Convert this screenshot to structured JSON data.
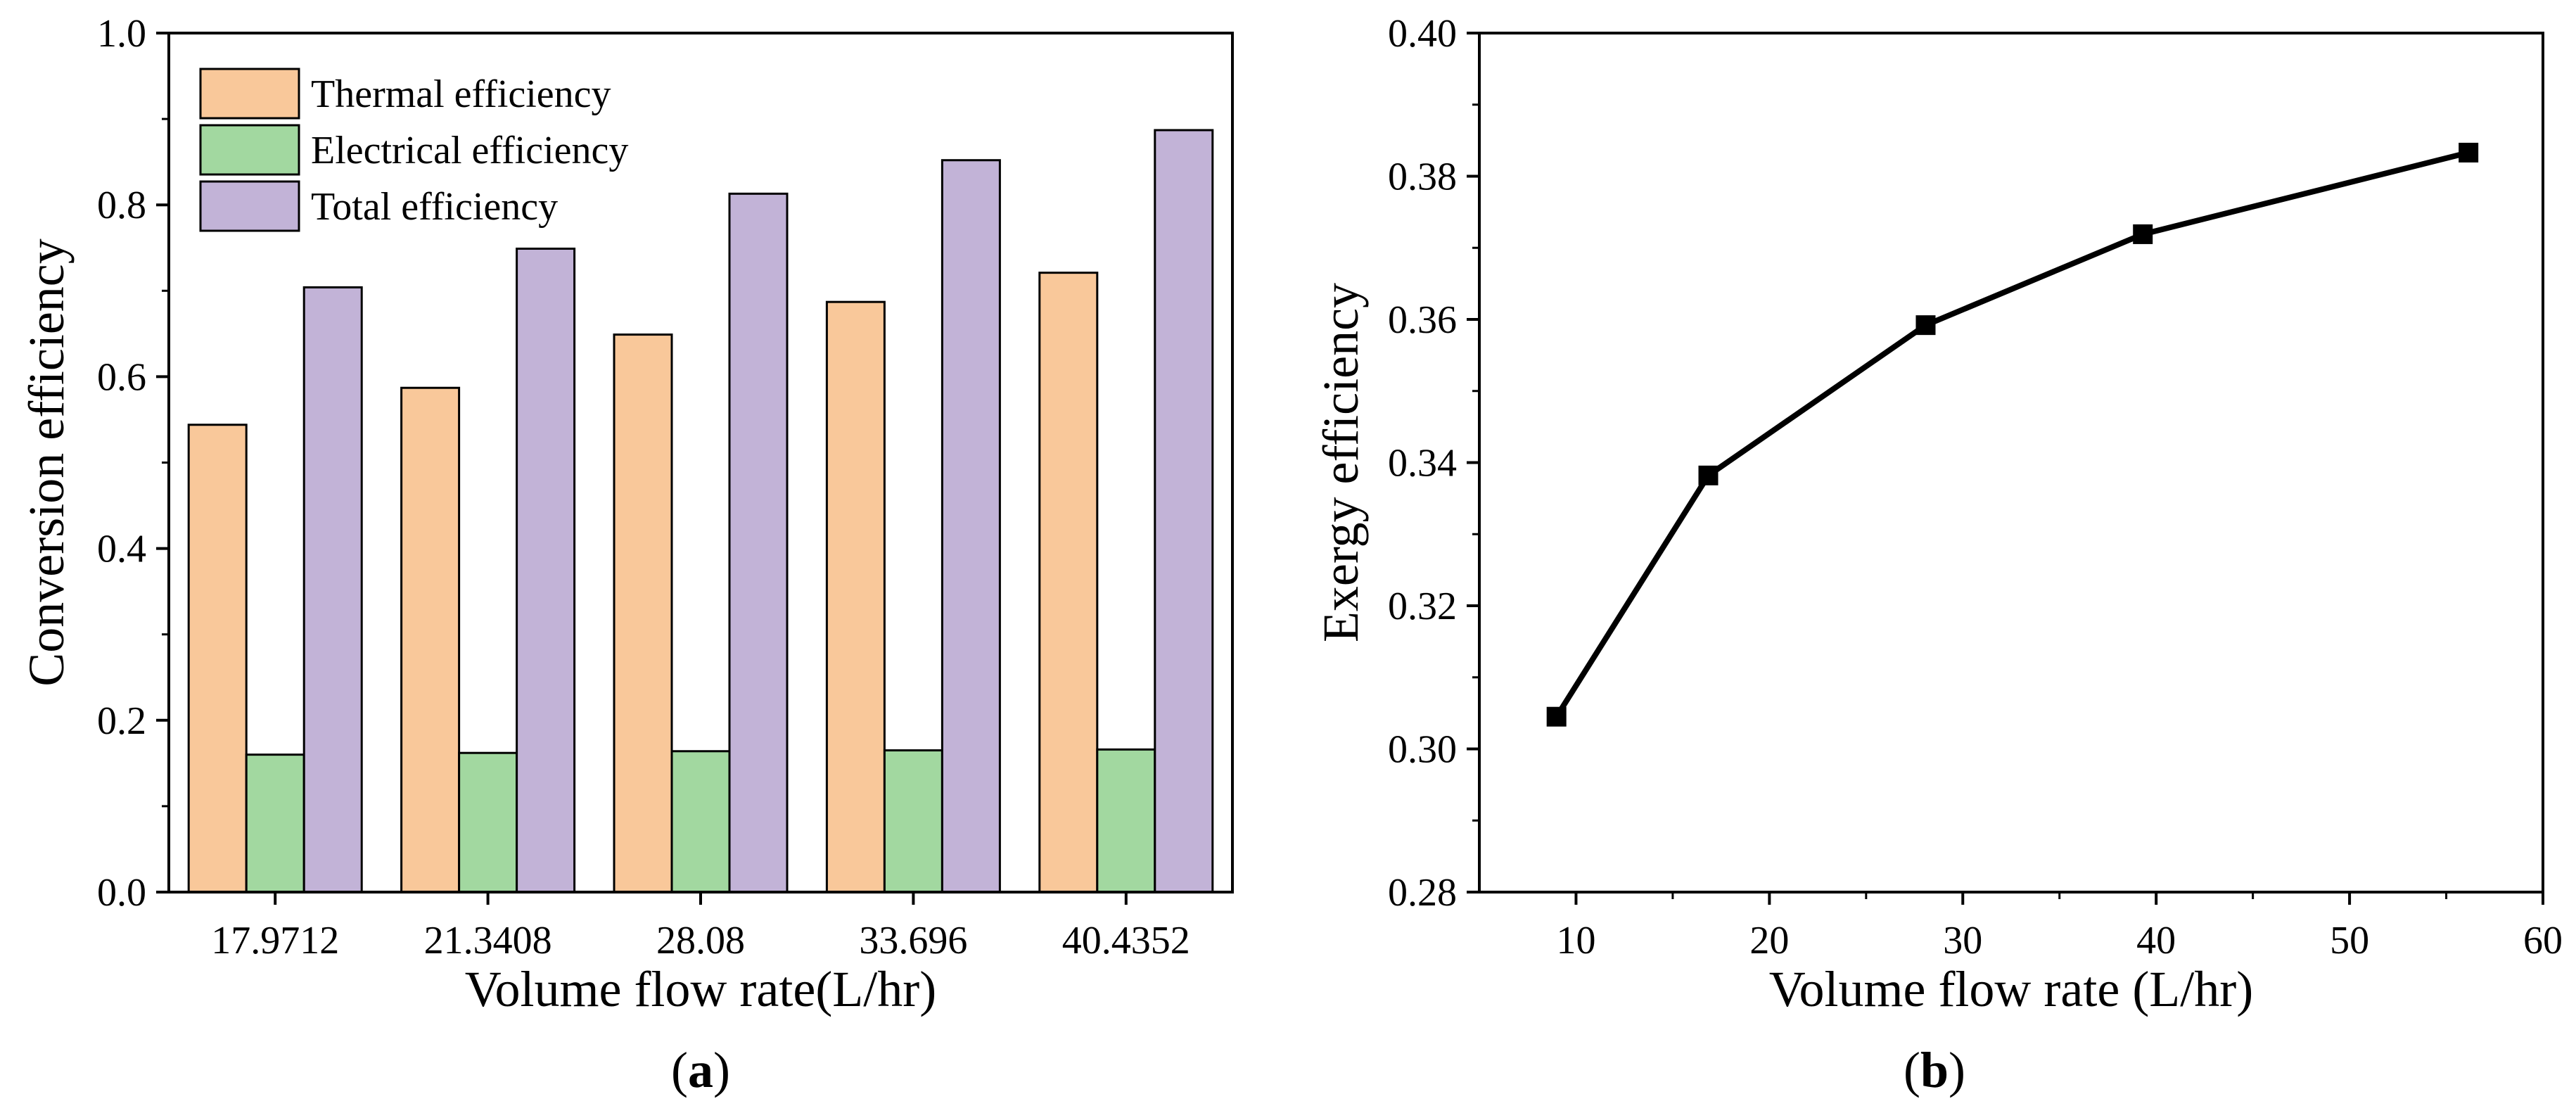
{
  "chart_data": [
    {
      "type": "bar",
      "panel_label": "a",
      "xlabel": "Volume flow rate(L/hr)",
      "ylabel": "Conversion efficiency",
      "ylim": [
        0.0,
        1.0
      ],
      "y_ticks": [
        "0.0",
        "0.2",
        "0.4",
        "0.6",
        "0.8",
        "1.0"
      ],
      "categories": [
        "17.9712",
        "21.3408",
        "28.08",
        "33.696",
        "40.4352"
      ],
      "legend_position": "top-left",
      "series": [
        {
          "name": "Thermal efficiency",
          "color": "#F9C89A",
          "values": [
            0.544,
            0.587,
            0.649,
            0.687,
            0.721
          ]
        },
        {
          "name": "Electrical efficiency",
          "color": "#A2D8A0",
          "values": [
            0.16,
            0.162,
            0.164,
            0.165,
            0.166
          ]
        },
        {
          "name": "Total efficiency",
          "color": "#C2B3D7",
          "values": [
            0.704,
            0.749,
            0.813,
            0.852,
            0.887
          ]
        }
      ]
    },
    {
      "type": "line",
      "panel_label": "b",
      "xlabel": "Volume flow rate (L/hr)",
      "ylabel": "Exergy efficiency",
      "xlim": [
        5,
        60
      ],
      "ylim": [
        0.28,
        0.4
      ],
      "x_ticks": [
        "10",
        "20",
        "30",
        "40",
        "50",
        "60"
      ],
      "y_ticks": [
        "0.28",
        "0.30",
        "0.32",
        "0.34",
        "0.36",
        "0.38",
        "0.40"
      ],
      "marker": "square",
      "line_color": "#000000",
      "points": [
        {
          "x": 8.99,
          "y": 0.3045
        },
        {
          "x": 16.84,
          "y": 0.3382
        },
        {
          "x": 28.08,
          "y": 0.3592
        },
        {
          "x": 39.31,
          "y": 0.3719
        },
        {
          "x": 56.15,
          "y": 0.3833
        }
      ]
    }
  ]
}
